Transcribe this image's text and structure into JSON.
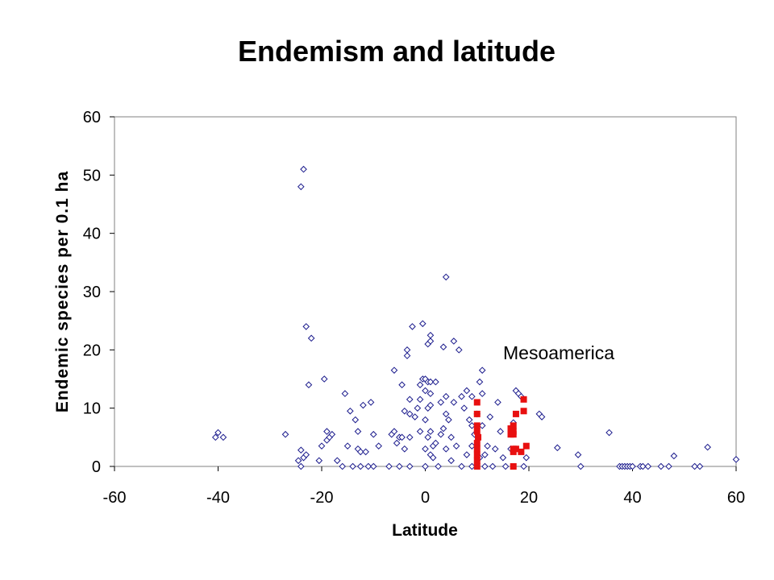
{
  "chart_data": {
    "type": "scatter",
    "title": "Endemism and latitude",
    "xlabel": "Latitude",
    "ylabel": "Endemic species per 0.1 ha",
    "xlim": [
      -60,
      60
    ],
    "ylim": [
      0,
      60
    ],
    "x_ticks": [
      "-60",
      "-40",
      "-20",
      "0",
      "20",
      "40",
      "60"
    ],
    "y_ticks": [
      "0",
      "10",
      "20",
      "30",
      "40",
      "50",
      "60"
    ],
    "grid": false,
    "annotation": "Mesoamerica",
    "series": [
      {
        "marker": "open-diamond",
        "color": "#1a1a8c",
        "points": [
          [
            -40.5,
            5
          ],
          [
            -40,
            5.8
          ],
          [
            -39,
            5
          ],
          [
            -27,
            5.5
          ],
          [
            -24.5,
            1
          ],
          [
            -24,
            48
          ],
          [
            -24,
            2.8
          ],
          [
            -23.5,
            51
          ],
          [
            -23.5,
            1.5
          ],
          [
            -23,
            24
          ],
          [
            -23,
            2
          ],
          [
            -22.5,
            14
          ],
          [
            -22,
            22
          ],
          [
            -24,
            0
          ],
          [
            -20.5,
            1
          ],
          [
            -20,
            3.5
          ],
          [
            -19.5,
            15
          ],
          [
            -19,
            6
          ],
          [
            -19,
            4.5
          ],
          [
            -18.5,
            5
          ],
          [
            -18,
            5.5
          ],
          [
            -17,
            1
          ],
          [
            -16,
            0
          ],
          [
            -15.5,
            12.5
          ],
          [
            -15,
            3.5
          ],
          [
            -14.5,
            9.5
          ],
          [
            -14,
            0
          ],
          [
            -13.5,
            8
          ],
          [
            -13,
            6
          ],
          [
            -13,
            3
          ],
          [
            -12.5,
            2.5
          ],
          [
            -12.5,
            0
          ],
          [
            -12,
            10.5
          ],
          [
            -11.5,
            2.5
          ],
          [
            -11,
            0
          ],
          [
            -10.5,
            11
          ],
          [
            -10,
            5.5
          ],
          [
            -10,
            0
          ],
          [
            -9,
            3.5
          ],
          [
            -7,
            0
          ],
          [
            -6.5,
            5.5
          ],
          [
            -6,
            16.5
          ],
          [
            -6,
            6
          ],
          [
            -5.5,
            4
          ],
          [
            -5,
            0
          ],
          [
            -5,
            5
          ],
          [
            -4.5,
            14
          ],
          [
            -4.5,
            5
          ],
          [
            -4,
            9.5
          ],
          [
            -4,
            3
          ],
          [
            -3.5,
            20
          ],
          [
            -3.5,
            19
          ],
          [
            -3,
            9
          ],
          [
            -3,
            11.5
          ],
          [
            -3,
            5
          ],
          [
            -3,
            0
          ],
          [
            -2.5,
            24
          ],
          [
            -2,
            8.5
          ],
          [
            -1.5,
            10
          ],
          [
            -1,
            14
          ],
          [
            -1,
            11.5
          ],
          [
            -1,
            6
          ],
          [
            -0.5,
            24.5
          ],
          [
            -0.5,
            15
          ],
          [
            0,
            15
          ],
          [
            0,
            13
          ],
          [
            0,
            8
          ],
          [
            0,
            3
          ],
          [
            0,
            0
          ],
          [
            0.5,
            21
          ],
          [
            0.5,
            14.5
          ],
          [
            0.5,
            10
          ],
          [
            0.5,
            5
          ],
          [
            1,
            22.5
          ],
          [
            1,
            21.5
          ],
          [
            1,
            14.5
          ],
          [
            1,
            12.5
          ],
          [
            1,
            10.5
          ],
          [
            1,
            6
          ],
          [
            1,
            2
          ],
          [
            1.5,
            3.5
          ],
          [
            1.5,
            1.5
          ],
          [
            2,
            14.5
          ],
          [
            2,
            4
          ],
          [
            2.5,
            0
          ],
          [
            3,
            11
          ],
          [
            3,
            5.5
          ],
          [
            3.5,
            20.5
          ],
          [
            3.5,
            6.5
          ],
          [
            4,
            32.5
          ],
          [
            4,
            12
          ],
          [
            4,
            9
          ],
          [
            4,
            3
          ],
          [
            4.5,
            8
          ],
          [
            5,
            5
          ],
          [
            5,
            1
          ],
          [
            5.5,
            21.5
          ],
          [
            5.5,
            11
          ],
          [
            6,
            3.5
          ],
          [
            6.5,
            20
          ],
          [
            7,
            12
          ],
          [
            7,
            0
          ],
          [
            7.5,
            10
          ],
          [
            8,
            13
          ],
          [
            8,
            2
          ],
          [
            8.5,
            8
          ],
          [
            9,
            12
          ],
          [
            9,
            7
          ],
          [
            9,
            3.5
          ],
          [
            9,
            0
          ],
          [
            9.5,
            5.5
          ],
          [
            10,
            9
          ],
          [
            10.5,
            14.5
          ],
          [
            10.5,
            1.5
          ],
          [
            11,
            16.5
          ],
          [
            11,
            12.5
          ],
          [
            11,
            7
          ],
          [
            11.5,
            2
          ],
          [
            11.5,
            0
          ],
          [
            12,
            3.5
          ],
          [
            12.5,
            8.5
          ],
          [
            13,
            0
          ],
          [
            13.5,
            3
          ],
          [
            14,
            11
          ],
          [
            14.5,
            6
          ],
          [
            15,
            1.5
          ],
          [
            15.5,
            0
          ],
          [
            16.5,
            3
          ],
          [
            17,
            7.5
          ],
          [
            17.5,
            13
          ],
          [
            18,
            12.5
          ],
          [
            18.5,
            12
          ],
          [
            19,
            0
          ],
          [
            19.5,
            1.5
          ],
          [
            22,
            9
          ],
          [
            22.5,
            8.5
          ],
          [
            25.5,
            3.2
          ],
          [
            29.5,
            2
          ],
          [
            30,
            0
          ],
          [
            35.5,
            5.8
          ],
          [
            37.5,
            0
          ],
          [
            38,
            0
          ],
          [
            38.5,
            0
          ],
          [
            39,
            0
          ],
          [
            39.5,
            0
          ],
          [
            40,
            0
          ],
          [
            41.5,
            0
          ],
          [
            42,
            0
          ],
          [
            43,
            0
          ],
          [
            45.5,
            0
          ],
          [
            47,
            0
          ],
          [
            48,
            1.8
          ],
          [
            52,
            0
          ],
          [
            53,
            0
          ],
          [
            54.5,
            3.3
          ],
          [
            60,
            1.2
          ]
        ]
      },
      {
        "marker": "filled-square",
        "color": "#e81010",
        "points": [
          [
            10,
            11
          ],
          [
            10,
            9
          ],
          [
            10,
            7
          ],
          [
            10,
            6
          ],
          [
            10,
            4
          ],
          [
            10,
            3
          ],
          [
            10,
            2
          ],
          [
            10,
            1
          ],
          [
            10,
            0
          ],
          [
            10.2,
            5
          ],
          [
            16.5,
            6.5
          ],
          [
            16.5,
            5.5
          ],
          [
            17,
            7
          ],
          [
            17,
            6
          ],
          [
            17,
            5.5
          ],
          [
            17,
            3
          ],
          [
            17,
            2.5
          ],
          [
            17,
            0
          ],
          [
            17.5,
            9
          ],
          [
            17.5,
            3
          ],
          [
            18.5,
            2.5
          ],
          [
            19,
            11.5
          ],
          [
            19,
            9.5
          ],
          [
            19.5,
            3.5
          ]
        ]
      }
    ]
  }
}
